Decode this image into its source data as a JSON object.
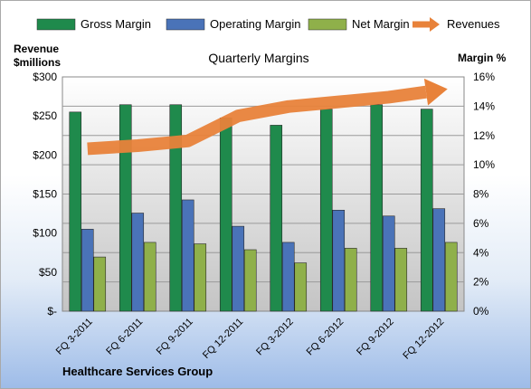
{
  "chart_data": {
    "type": "bar",
    "title": "Quarterly Margins",
    "footer": "Healthcare Services Group",
    "y_left_label_line1": "Revenue",
    "y_left_label_line2": "$millions",
    "y_right_label": "Margin %",
    "categories": [
      "FQ 3-2011",
      "FQ 6-2011",
      "FQ 9-2011",
      "FQ 12-2011",
      "FQ 3-2012",
      "FQ 6-2012",
      "FQ 9-2012",
      "FQ 12-2012"
    ],
    "y_left_ticks": [
      "$-",
      "$50",
      "$100",
      "$150",
      "$200",
      "$250",
      "$300"
    ],
    "y_right_ticks": [
      "0%",
      "2%",
      "4%",
      "6%",
      "8%",
      "10%",
      "12%",
      "14%",
      "16%"
    ],
    "ylim_left": [
      0,
      300
    ],
    "ylim_right": [
      0,
      16
    ],
    "grid": true,
    "legend_position": "top",
    "series": [
      {
        "name": "Gross Margin",
        "axis": "right",
        "color": "#1f8a4c",
        "values": [
          13.6,
          14.1,
          14.1,
          13.2,
          12.7,
          13.8,
          14.1,
          13.8
        ]
      },
      {
        "name": "Operating Margin",
        "axis": "right",
        "color": "#4a73b8",
        "values": [
          5.6,
          6.7,
          7.6,
          5.8,
          4.7,
          6.9,
          6.5,
          7.0
        ]
      },
      {
        "name": "Net Margin",
        "axis": "right",
        "color": "#8fb04a",
        "values": [
          3.7,
          4.7,
          4.6,
          4.2,
          3.3,
          4.3,
          4.3,
          4.7
        ]
      },
      {
        "name": "Revenues",
        "axis": "left",
        "type": "line-arrow",
        "color": "#e8823a",
        "values": [
          208,
          212,
          218,
          250,
          262,
          268,
          274,
          283
        ]
      }
    ]
  }
}
